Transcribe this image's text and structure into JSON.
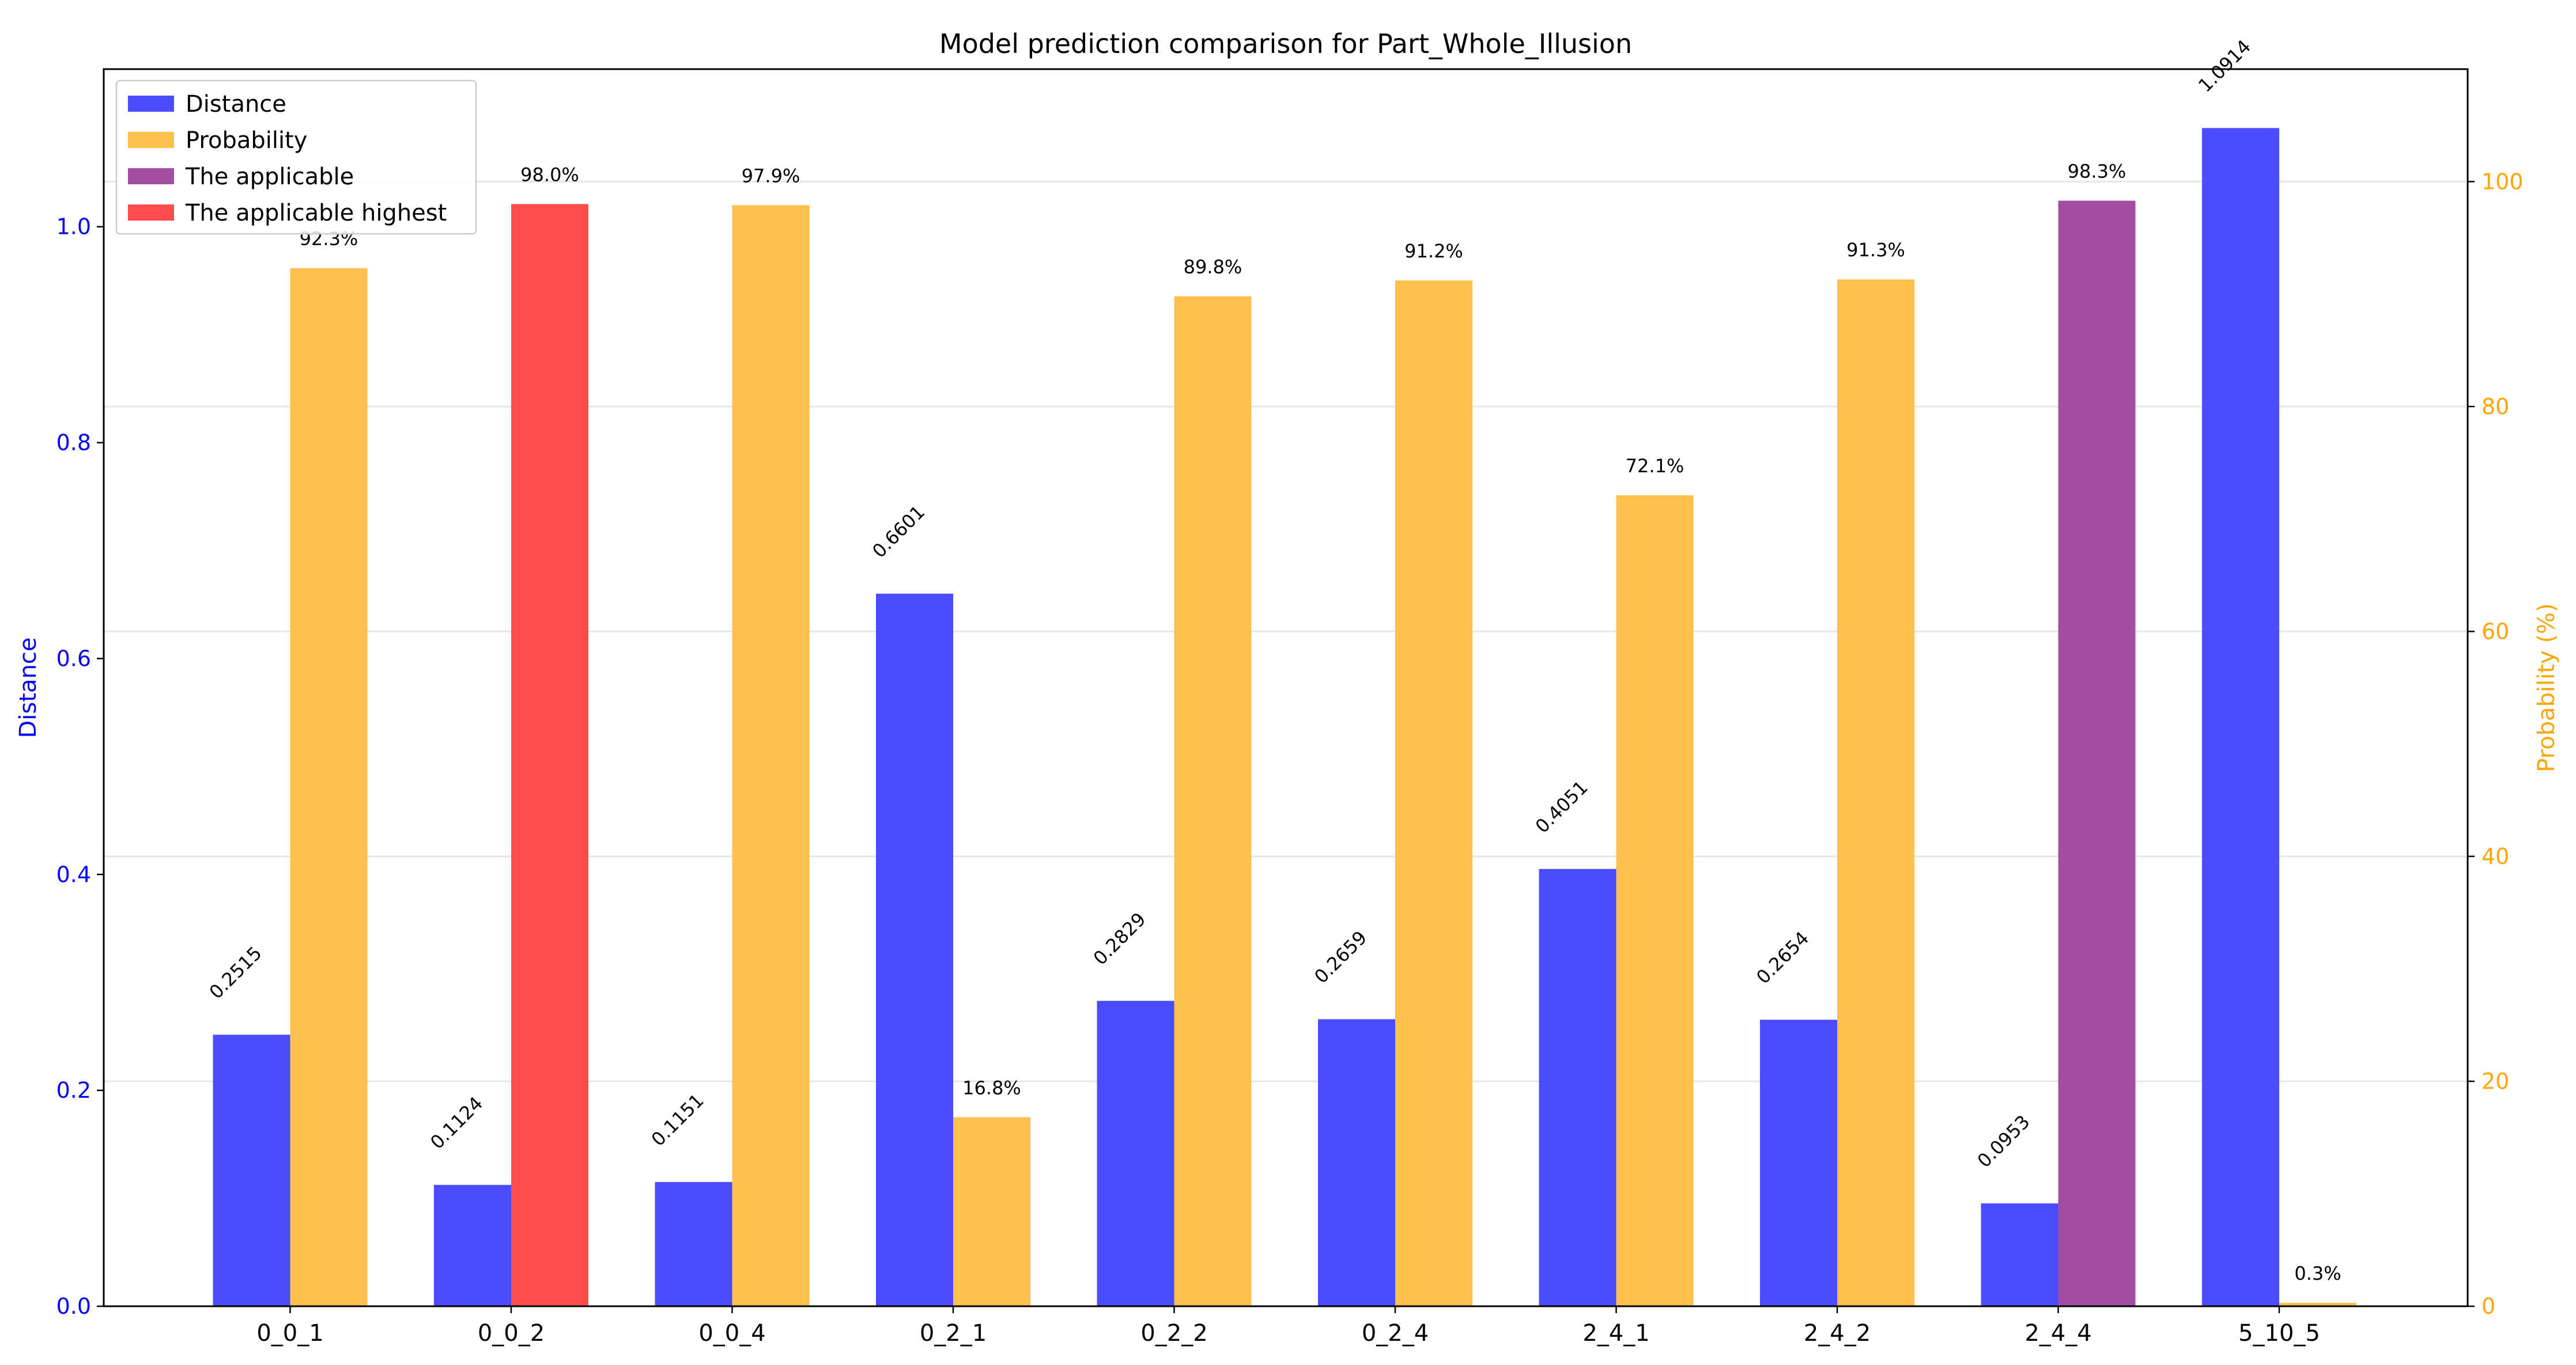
{
  "chart_data": {
    "type": "bar",
    "title": "Model prediction comparison for Part_Whole_Illusion",
    "categories": [
      "0_0_1",
      "0_0_2",
      "0_0_4",
      "0_2_1",
      "0_2_2",
      "0_2_4",
      "2_4_1",
      "2_4_2",
      "2_4_4",
      "5_10_5"
    ],
    "series": [
      {
        "name": "Distance",
        "axis": "left",
        "color": "#4c4cff",
        "values": [
          0.2515,
          0.1124,
          0.1151,
          0.6601,
          0.2829,
          0.2659,
          0.4051,
          0.2654,
          0.0953,
          1.0914
        ],
        "labels": [
          "0.2515",
          "0.1124",
          "0.1151",
          "0.6601",
          "0.2829",
          "0.2659",
          "0.4051",
          "0.2654",
          "0.0953",
          "1.0914"
        ]
      },
      {
        "name": "Probability",
        "axis": "right",
        "color": "#ffbf4c",
        "values": [
          92.3,
          98.0,
          97.9,
          16.8,
          89.8,
          91.2,
          72.1,
          91.3,
          98.3,
          0.3
        ],
        "labels": [
          "92.3%",
          "98.0%",
          "97.9%",
          "16.8%",
          "89.8%",
          "91.2%",
          "72.1%",
          "91.3%",
          "98.3%",
          "0.3%"
        ],
        "highlight": [
          "",
          "The applicable highest",
          "",
          "",
          "",
          "",
          "",
          "",
          "The applicable",
          ""
        ]
      }
    ],
    "legend": [
      {
        "name": "Distance",
        "color": "#4c4cff"
      },
      {
        "name": "Probability",
        "color": "#ffbf4c"
      },
      {
        "name": "The applicable",
        "color": "#a24ca2"
      },
      {
        "name": "The applicable highest",
        "color": "#ff4c4c"
      }
    ],
    "legend_position": "top-left",
    "ylabel_left": "Distance",
    "ylabel_right": "Probability (%)",
    "ylim_left": [
      0,
      1.146
    ],
    "ylim_right": [
      0,
      110
    ],
    "yticks_left": [
      0.0,
      0.2,
      0.4,
      0.6,
      0.8,
      1.0
    ],
    "yticks_left_labels": [
      "0.0",
      "0.2",
      "0.4",
      "0.6",
      "0.8",
      "1.0"
    ],
    "yticks_right": [
      0,
      20,
      40,
      60,
      80,
      100
    ],
    "yticks_right_labels": [
      "0",
      "20",
      "40",
      "60",
      "80",
      "100"
    ],
    "left_axis_color": "#0000ff",
    "right_axis_color": "#ffa500",
    "grid": "horizontal"
  }
}
